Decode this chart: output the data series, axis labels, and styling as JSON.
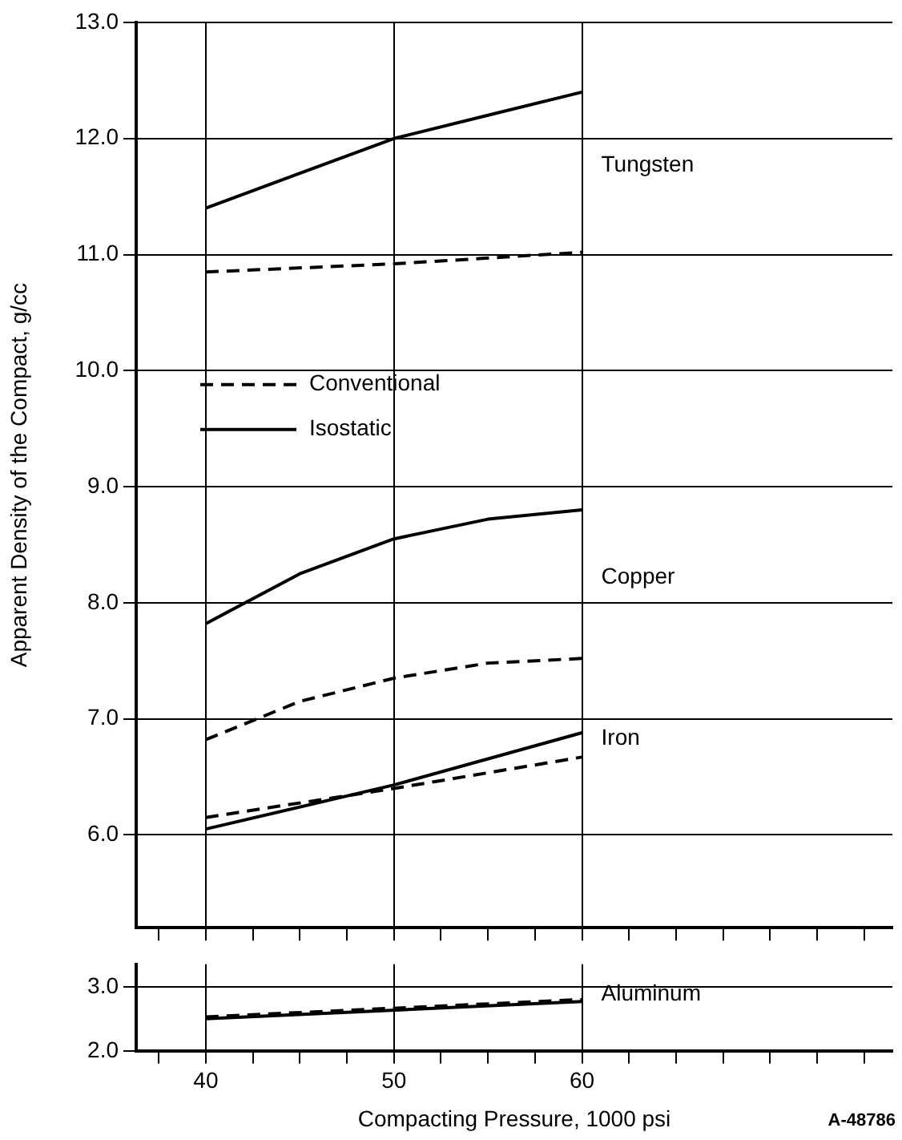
{
  "chart_data": [
    {
      "type": "line",
      "ylabel": "Apparent Density of the Compact, g/cc",
      "xlim": [
        36.3,
        76.5
      ],
      "xticks": [
        {
          "value": 37.5,
          "label": null
        },
        40,
        {
          "value": 42.5,
          "label": null
        },
        {
          "value": 45,
          "label": null
        },
        {
          "value": 47.5,
          "label": null
        },
        50,
        {
          "value": 52.5,
          "label": null
        },
        {
          "value": 55,
          "label": null
        },
        {
          "value": 57.5,
          "label": null
        },
        60,
        {
          "value": 62.5,
          "label": null
        },
        {
          "value": 65,
          "label": null
        },
        {
          "value": 67.5,
          "label": null
        },
        {
          "value": 70,
          "label": null
        },
        {
          "value": 72.5,
          "label": null
        },
        {
          "value": 75,
          "label": null
        }
      ],
      "ylim": [
        5.2,
        13
      ],
      "yticks": [
        {
          "value": 6,
          "label": "6.0"
        },
        {
          "value": 7,
          "label": "7.0"
        },
        {
          "value": 8,
          "label": "8.0"
        },
        {
          "value": 9,
          "label": "9.0"
        },
        {
          "value": 10,
          "label": "10.0"
        },
        {
          "value": 11,
          "label": "11.0"
        },
        {
          "value": 12,
          "label": "12.0"
        },
        {
          "value": 13,
          "label": "13.0"
        }
      ],
      "tick_labels": "y",
      "grid": true,
      "legend": "left",
      "marker": "none",
      "series": [
        {
          "name": "Isostatic",
          "color": "#000000",
          "line_style": "solid",
          "x": [
            40,
            45,
            50,
            55,
            60
          ],
          "values": [
            11.4,
            11.7,
            12.0,
            12.2,
            12.4
          ]
        },
        {
          "name": "Conventional",
          "color": "#000000",
          "line_style": "dashed",
          "x": [
            40,
            50,
            60
          ],
          "values": [
            10.85,
            10.92,
            11.02
          ]
        },
        {
          "color": "#000000",
          "line_style": "solid",
          "x": [
            40,
            45,
            50,
            55,
            60
          ],
          "values": [
            7.82,
            8.25,
            8.55,
            8.72,
            8.8
          ]
        },
        {
          "color": "#000000",
          "line_style": "dashed",
          "x": [
            40,
            45,
            50,
            55,
            60
          ],
          "values": [
            6.82,
            7.15,
            7.35,
            7.48,
            7.52
          ]
        },
        {
          "color": "#000000",
          "line_style": "solid",
          "x": [
            40,
            50,
            60
          ],
          "values": [
            6.05,
            6.43,
            6.88
          ]
        },
        {
          "color": "#000000",
          "line_style": "dashed",
          "x": [
            40,
            50,
            60
          ],
          "values": [
            6.15,
            6.4,
            6.67
          ]
        }
      ],
      "annotations": [
        "Tungsten",
        "Copper",
        "Iron"
      ]
    },
    {
      "type": "line",
      "xlabel": "Compacting Pressure, 1000 psi",
      "xlim": [
        36.3,
        76.5
      ],
      "xticks": [
        {
          "value": 37.5,
          "label": null
        },
        {
          "value": 40,
          "label": "40"
        },
        {
          "value": 42.5,
          "label": null
        },
        {
          "value": 45,
          "label": null
        },
        {
          "value": 47.5,
          "label": null
        },
        {
          "value": 50,
          "label": "50"
        },
        {
          "value": 52.5,
          "label": null
        },
        {
          "value": 55,
          "label": null
        },
        {
          "value": 57.5,
          "label": null
        },
        {
          "value": 60,
          "label": "60"
        },
        {
          "value": 62.5,
          "label": null
        },
        {
          "value": 65,
          "label": null
        },
        {
          "value": 67.5,
          "label": null
        },
        {
          "value": 70,
          "label": null
        },
        {
          "value": 72.5,
          "label": null
        },
        {
          "value": 75,
          "label": null
        }
      ],
      "ylim": [
        2,
        3.35
      ],
      "yticks": [
        {
          "value": 2,
          "label": "2.0"
        },
        {
          "value": 3,
          "label": "3.0"
        }
      ],
      "grid": true,
      "marker": "none",
      "series": [
        {
          "color": "#000000",
          "line_style": "solid",
          "x": [
            40,
            60
          ],
          "values": [
            2.5,
            2.77
          ]
        },
        {
          "color": "#000000",
          "line_style": "dashed",
          "x": [
            40,
            60
          ],
          "values": [
            2.53,
            2.8
          ]
        }
      ],
      "annotations": [
        "Aluminum",
        "A-48786"
      ]
    }
  ]
}
